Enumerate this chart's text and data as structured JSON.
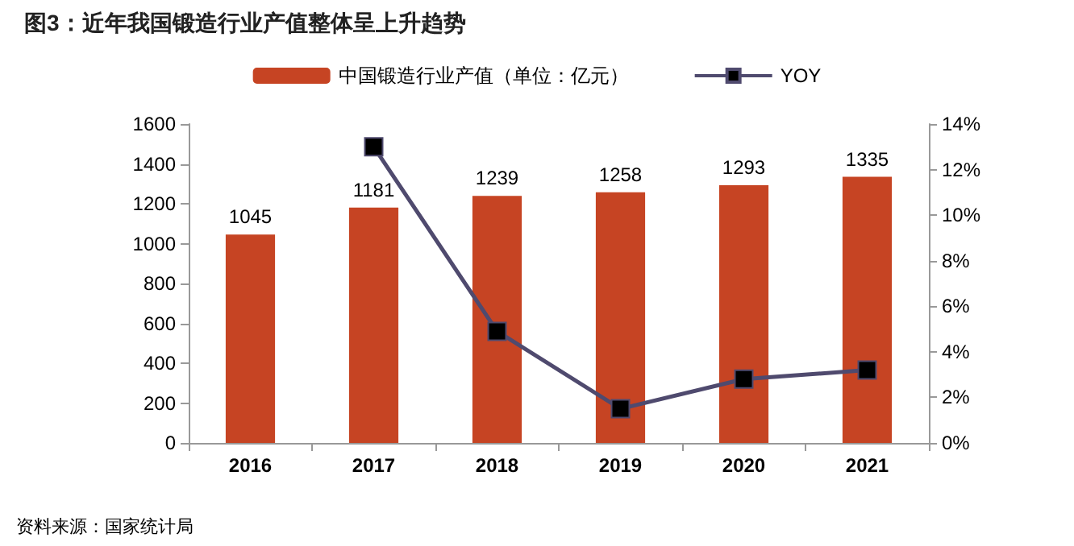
{
  "chart_data": {
    "type": "bar",
    "title": "图3：近年我国锻造行业产值整体呈上升趋势",
    "categories": [
      "2016",
      "2017",
      "2018",
      "2019",
      "2020",
      "2021"
    ],
    "series": [
      {
        "name": "中国锻造行业产值（单位：亿元）",
        "color": "#c64423",
        "values": [
          1045,
          1181,
          1239,
          1258,
          1293,
          1335
        ],
        "data_labels": true
      },
      {
        "name": "YOY",
        "type": "line",
        "axis": "y2",
        "color": "#4f4a6e",
        "marker": "square",
        "values": [
          null,
          13.0,
          4.9,
          1.5,
          2.8,
          3.2
        ]
      }
    ],
    "ylim": [
      0,
      1600
    ],
    "yticks": [
      0,
      200,
      400,
      600,
      800,
      1000,
      1200,
      1400,
      1600
    ],
    "y2lim": [
      0,
      14
    ],
    "y2ticks": [
      {
        "value": 0,
        "label": "0%"
      },
      {
        "value": 2,
        "label": "2%"
      },
      {
        "value": 4,
        "label": "4%"
      },
      {
        "value": 6,
        "label": "6%"
      },
      {
        "value": 8,
        "label": "8%"
      },
      {
        "value": 10,
        "label": "10%"
      },
      {
        "value": 12,
        "label": "12%"
      },
      {
        "value": 14,
        "label": "14%"
      }
    ],
    "grid": false,
    "legend": "top",
    "annotations": [
      "资料来源：国家统计局"
    ]
  }
}
